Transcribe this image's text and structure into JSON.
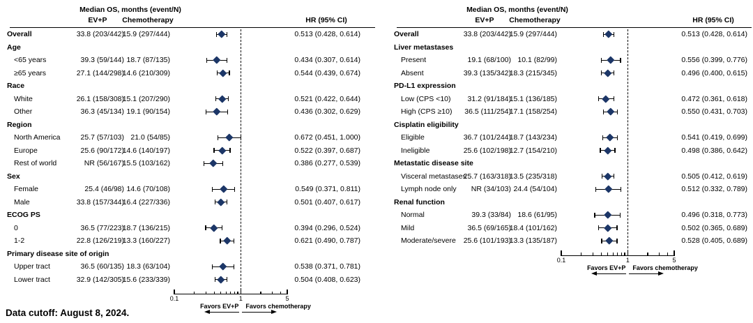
{
  "footer": {
    "data_cutoff": "Data cutoff: August 8, 2024."
  },
  "colors": {
    "marker": "#1c3667",
    "ci_line": "#000000",
    "ref_line": "#000000",
    "text": "#000000"
  },
  "chart_data": [
    {
      "type": "forest",
      "panel": "left",
      "title": "Median OS, months (event/N)",
      "columns": {
        "ev_p": "EV+P",
        "chemo": "Chemotherapy",
        "hr": "HR (95% CI)"
      },
      "axis": {
        "scale": "log",
        "min": 0.1,
        "max": 5,
        "ref": 1,
        "tick_labels": [
          "0.1",
          "1",
          "5"
        ],
        "major_ticks": [
          0.1,
          1,
          5
        ],
        "minor_ticks": [
          0.2,
          0.3,
          0.4,
          0.5,
          0.6,
          0.7,
          0.8,
          0.9,
          2,
          3,
          4
        ],
        "favors_left": "Favors EV+P",
        "favors_right": "Favors chemotherapy"
      },
      "rows": [
        {
          "label": "Overall",
          "bold": true,
          "ev_p": "33.8 (203/442)",
          "chemo": "15.9 (297/444)",
          "hr": 0.513,
          "ci": [
            0.428,
            0.614
          ],
          "hr_text": "0.513 (0.428, 0.614)"
        },
        {
          "label": "Age",
          "group": true
        },
        {
          "label": "<65 years",
          "ev_p": "39.3 (59/144)",
          "chemo": "18.7 (87/135)",
          "hr": 0.434,
          "ci": [
            0.307,
            0.614
          ],
          "hr_text": "0.434 (0.307, 0.614)"
        },
        {
          "label": "≥65 years",
          "ev_p": "27.1 (144/298)",
          "chemo": "14.6 (210/309)",
          "hr": 0.544,
          "ci": [
            0.439,
            0.674
          ],
          "hr_text": "0.544 (0.439, 0.674)"
        },
        {
          "label": "Race",
          "group": true
        },
        {
          "label": "White",
          "ev_p": "26.1 (158/308)",
          "chemo": "15.1 (207/290)",
          "hr": 0.521,
          "ci": [
            0.422,
            0.644
          ],
          "hr_text": "0.521 (0.422, 0.644)"
        },
        {
          "label": "Other",
          "ev_p": "36.3 (45/134)",
          "chemo": "19.1 (90/154)",
          "hr": 0.436,
          "ci": [
            0.302,
            0.629
          ],
          "hr_text": "0.436 (0.302, 0.629)"
        },
        {
          "label": "Region",
          "group": true
        },
        {
          "label": "North America",
          "ev_p": "25.7 (57/103)",
          "chemo": "21.0 (54/85)",
          "hr": 0.672,
          "ci": [
            0.451,
            1.0
          ],
          "hr_text": "0.672 (0.451, 1.000)"
        },
        {
          "label": "Europe",
          "ev_p": "25.6 (90/172)",
          "chemo": "14.6 (140/197)",
          "hr": 0.522,
          "ci": [
            0.397,
            0.687
          ],
          "hr_text": "0.522 (0.397, 0.687)"
        },
        {
          "label": "Rest of world",
          "ev_p": "NR (56/167)",
          "chemo": "15.5 (103/162)",
          "hr": 0.386,
          "ci": [
            0.277,
            0.539
          ],
          "hr_text": "0.386 (0.277, 0.539)"
        },
        {
          "label": "Sex",
          "group": true
        },
        {
          "label": "Female",
          "ev_p": "25.4 (46/98)",
          "chemo": "14.6 (70/108)",
          "hr": 0.549,
          "ci": [
            0.371,
            0.811
          ],
          "hr_text": "0.549 (0.371, 0.811)"
        },
        {
          "label": "Male",
          "ev_p": "33.8 (157/344)",
          "chemo": "16.4 (227/336)",
          "hr": 0.501,
          "ci": [
            0.407,
            0.617
          ],
          "hr_text": "0.501 (0.407, 0.617)"
        },
        {
          "label": "ECOG PS",
          "group": true
        },
        {
          "label": "0",
          "ev_p": "36.5 (77/223)",
          "chemo": "18.7 (136/215)",
          "hr": 0.394,
          "ci": [
            0.296,
            0.524
          ],
          "hr_text": "0.394 (0.296, 0.524)"
        },
        {
          "label": "1-2",
          "ev_p": "22.8 (126/219)",
          "chemo": "13.3 (160/227)",
          "hr": 0.621,
          "ci": [
            0.49,
            0.787
          ],
          "hr_text": "0.621 (0.490, 0.787)"
        },
        {
          "label": "Primary disease site of origin",
          "group": true
        },
        {
          "label": "Upper tract",
          "ev_p": "36.5 (60/135)",
          "chemo": "18.3 (63/104)",
          "hr": 0.538,
          "ci": [
            0.371,
            0.781
          ],
          "hr_text": "0.538 (0.371, 0.781)"
        },
        {
          "label": "Lower tract",
          "ev_p": "32.9 (142/305)",
          "chemo": "15.6 (233/339)",
          "hr": 0.504,
          "ci": [
            0.408,
            0.623
          ],
          "hr_text": "0.504 (0.408, 0.623)"
        }
      ]
    },
    {
      "type": "forest",
      "panel": "right",
      "title": "Median OS, months (event/N)",
      "columns": {
        "ev_p": "EV+P",
        "chemo": "Chemotherapy",
        "hr": "HR (95% CI)"
      },
      "axis": {
        "scale": "log",
        "min": 0.1,
        "max": 5,
        "ref": 1,
        "tick_labels": [
          "0.1",
          "1",
          "5"
        ],
        "major_ticks": [
          0.1,
          1,
          5
        ],
        "minor_ticks": [
          0.2,
          0.3,
          0.4,
          0.5,
          0.6,
          0.7,
          0.8,
          0.9,
          2,
          3,
          4
        ],
        "favors_left": "Favors EV+P",
        "favors_right": "Favors chemotherapy"
      },
      "rows": [
        {
          "label": "Overall",
          "bold": true,
          "ev_p": "33.8 (203/442)",
          "chemo": "15.9 (297/444)",
          "hr": 0.513,
          "ci": [
            0.428,
            0.614
          ],
          "hr_text": "0.513 (0.428, 0.614)"
        },
        {
          "label": "Liver metastases",
          "group": true
        },
        {
          "label": "Present",
          "ev_p": "19.1 (68/100)",
          "chemo": "10.1 (82/99)",
          "hr": 0.556,
          "ci": [
            0.399,
            0.776
          ],
          "hr_text": "0.556 (0.399, 0.776)"
        },
        {
          "label": "Absent",
          "ev_p": "39.3 (135/342)",
          "chemo": "18.3 (215/345)",
          "hr": 0.496,
          "ci": [
            0.4,
            0.615
          ],
          "hr_text": "0.496 (0.400, 0.615)"
        },
        {
          "label": "PD-L1 expression",
          "group": true
        },
        {
          "label": "Low (CPS <10)",
          "ev_p": "31.2 (91/184)",
          "chemo": "15.1 (136/185)",
          "hr": 0.472,
          "ci": [
            0.361,
            0.618
          ],
          "hr_text": "0.472 (0.361, 0.618)"
        },
        {
          "label": "High (CPS ≥10)",
          "ev_p": "36.5 (111/254)",
          "chemo": "17.1 (158/254)",
          "hr": 0.55,
          "ci": [
            0.431,
            0.703
          ],
          "hr_text": "0.550 (0.431, 0.703)"
        },
        {
          "label": "Cisplatin eligibility",
          "group": true
        },
        {
          "label": "Eligible",
          "ev_p": "36.7 (101/244)",
          "chemo": "18.7 (143/234)",
          "hr": 0.541,
          "ci": [
            0.419,
            0.699
          ],
          "hr_text": "0.541 (0.419, 0.699)"
        },
        {
          "label": "Ineligible",
          "ev_p": "25.6 (102/198)",
          "chemo": "12.7 (154/210)",
          "hr": 0.498,
          "ci": [
            0.386,
            0.642
          ],
          "hr_text": "0.498 (0.386, 0.642)"
        },
        {
          "label": "Metastatic disease site",
          "group": true
        },
        {
          "label": "Visceral metastases",
          "ev_p": "25.7 (163/318)",
          "chemo": "13.5 (235/318)",
          "hr": 0.505,
          "ci": [
            0.412,
            0.619
          ],
          "hr_text": "0.505 (0.412, 0.619)"
        },
        {
          "label": "Lymph node only",
          "ev_p": "NR (34/103)",
          "chemo": "24.4 (54/104)",
          "hr": 0.512,
          "ci": [
            0.332,
            0.789
          ],
          "hr_text": "0.512 (0.332, 0.789)"
        },
        {
          "label": "Renal function",
          "group": true
        },
        {
          "label": "Normal",
          "ev_p": "39.3 (33/84)",
          "chemo": "18.6 (61/95)",
          "hr": 0.496,
          "ci": [
            0.318,
            0.773
          ],
          "hr_text": "0.496 (0.318, 0.773)"
        },
        {
          "label": "Mild",
          "ev_p": "36.5 (69/165)",
          "chemo": "18.4 (101/162)",
          "hr": 0.502,
          "ci": [
            0.365,
            0.689
          ],
          "hr_text": "0.502 (0.365, 0.689)"
        },
        {
          "label": "Moderate/severe",
          "ev_p": "25.6 (101/193)",
          "chemo": "13.3 (135/187)",
          "hr": 0.528,
          "ci": [
            0.405,
            0.689
          ],
          "hr_text": "0.528 (0.405, 0.689)"
        }
      ]
    }
  ]
}
